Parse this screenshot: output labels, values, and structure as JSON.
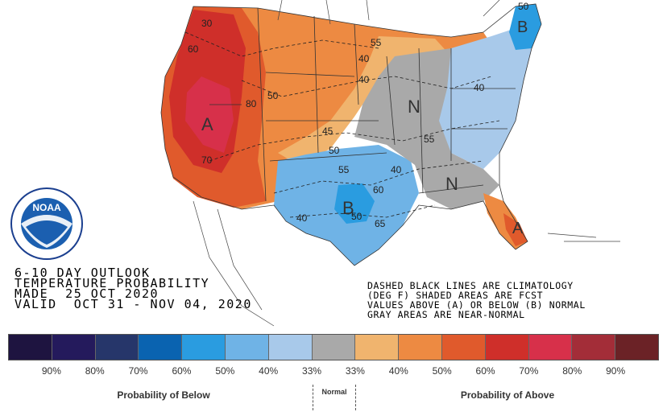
{
  "outlook": {
    "line1": "6-10 DAY OUTLOOK",
    "line2": "TEMPERATURE PROBABILITY",
    "line3": "MADE  25 OCT 2020",
    "line4": "VALID  OCT 31 - NOV 04, 2020"
  },
  "note": {
    "line1": "DASHED BLACK LINES ARE CLIMATOLOGY",
    "line2": "(DEG F) SHADED AREAS ARE FCST",
    "line3": "VALUES ABOVE (A) OR BELOW (B) NORMAL",
    "line4": "GRAY AREAS ARE NEAR-NORMAL"
  },
  "logo": {
    "text": "NOAA"
  },
  "map_labels": {
    "above_west": "A",
    "above_florida": "A",
    "below_texas": "B",
    "below_maine": "B",
    "normal_north": "N",
    "normal_south": "N",
    "clim": [
      "30",
      "60",
      "80",
      "70",
      "50",
      "55",
      "40",
      "40",
      "45",
      "50",
      "55",
      "60",
      "65",
      "40",
      "50",
      "40",
      "55",
      "40",
      "50"
    ]
  },
  "legend": {
    "colors": [
      "#1e1440",
      "#241a5c",
      "#26366a",
      "#0a63b0",
      "#2a9ce0",
      "#6fb3e6",
      "#a8c9ea",
      "#a9a9a9",
      "#f0b46e",
      "#ed8a42",
      "#e05a2c",
      "#cf2f2a",
      "#d7304a",
      "#a32d38",
      "#6b2226"
    ],
    "percent_labels": [
      "90%",
      "80%",
      "70%",
      "60%",
      "50%",
      "40%",
      "33%",
      "33%",
      "40%",
      "50%",
      "60%",
      "70%",
      "80%",
      "90%"
    ],
    "below_label": "Probability of Below",
    "normal_label": "Normal",
    "above_label": "Probability of Above"
  }
}
